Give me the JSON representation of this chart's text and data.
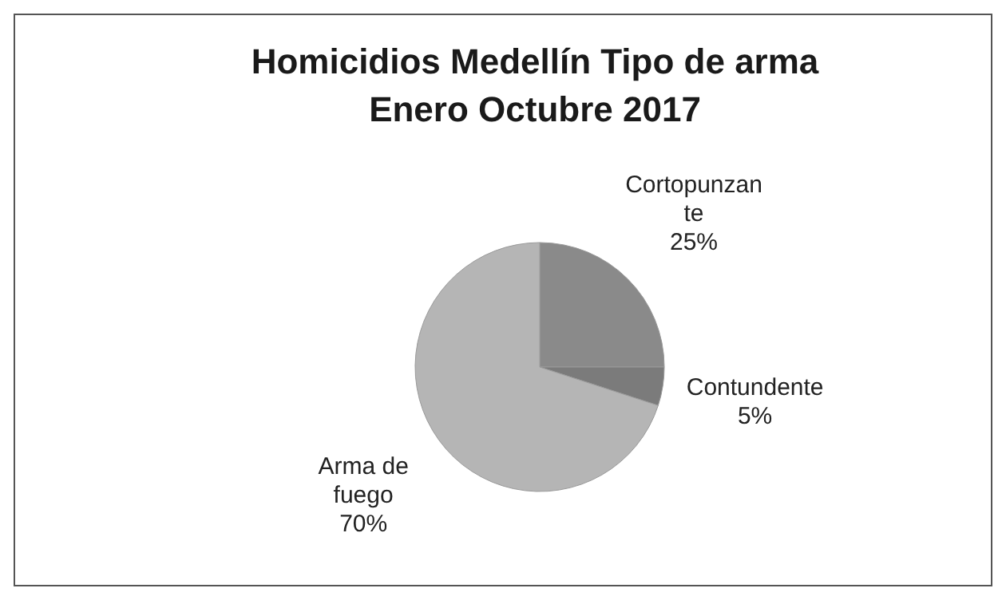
{
  "chart_data": {
    "type": "pie",
    "title": "Homicidios Medellín Tipo de arma Enero Octubre 2017",
    "categories": [
      "Cortopunzante",
      "Contundente",
      "Arma de fuego"
    ],
    "values": [
      25,
      5,
      70
    ],
    "colors": [
      "#8a8a8a",
      "#7b7b7b",
      "#b5b5b5"
    ],
    "value_labels": [
      "25%",
      "5%",
      "70%"
    ],
    "legend": false
  }
}
